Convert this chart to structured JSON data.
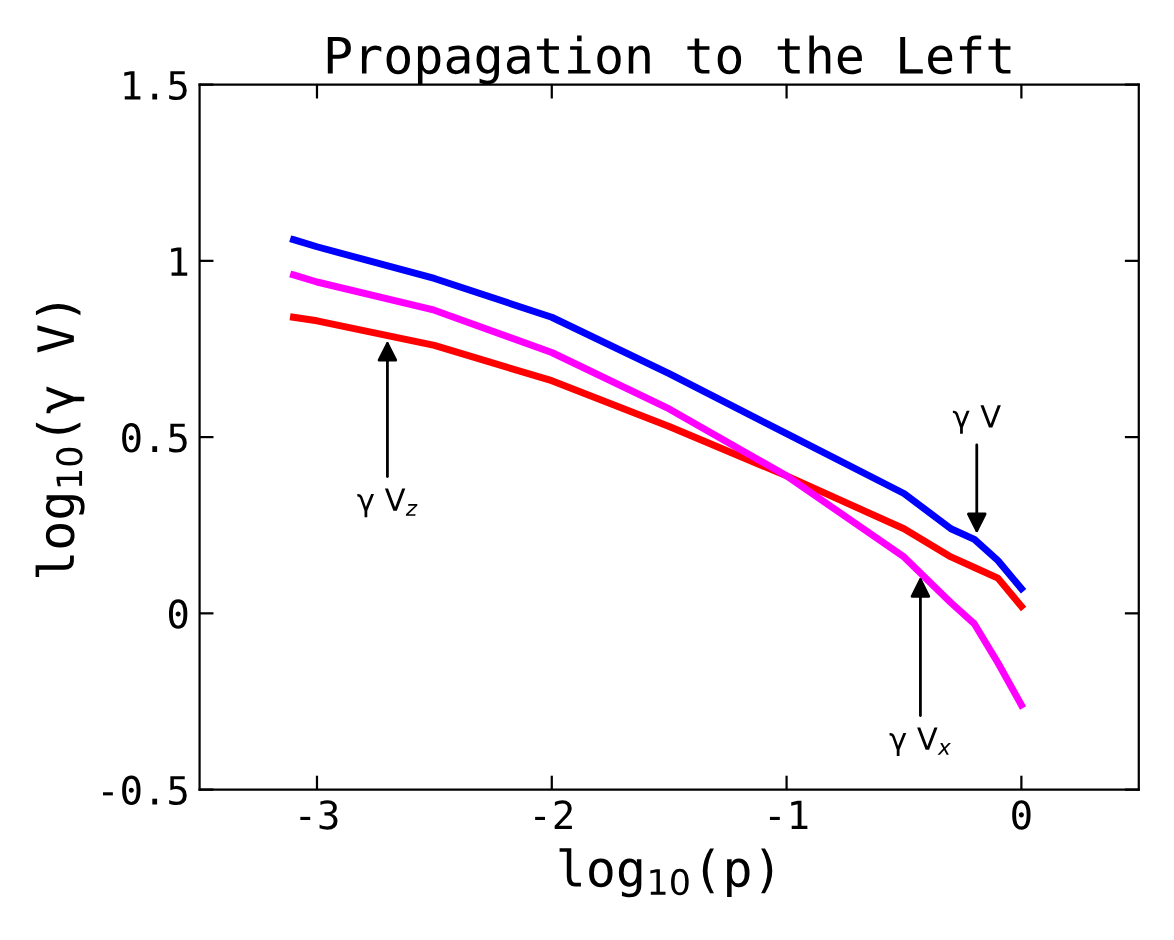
{
  "chart_data": {
    "type": "line",
    "title": "Propagation to the Left",
    "xlabel": "log$_{10}$(p)",
    "ylabel": "log$_{10}$(γ V)",
    "x": [
      -3.1,
      -3,
      -2.5,
      -2,
      -1.5,
      -1,
      -0.5,
      -0.3,
      -0.2,
      -0.1,
      0
    ],
    "series": [
      {
        "color": "#0000ff",
        "values": [
          1.06,
          1.04,
          0.95,
          0.84,
          0.68,
          0.51,
          0.34,
          0.24,
          0.21,
          0.15,
          0.07
        ]
      },
      {
        "color": "#ff0000",
        "values": [
          0.84,
          0.83,
          0.76,
          0.66,
          0.53,
          0.39,
          0.24,
          0.16,
          0.13,
          0.1,
          0.02
        ]
      },
      {
        "color": "#ff00ff",
        "values": [
          0.96,
          0.94,
          0.86,
          0.74,
          0.58,
          0.39,
          0.16,
          0.03,
          -0.03,
          -0.14,
          -0.26
        ]
      }
    ],
    "annotations": [
      {
        "text": "γ V$_{z}$",
        "x": -2.7,
        "y": 0.79
      },
      {
        "text": "γ V",
        "x": -0.19,
        "y": 0.21
      },
      {
        "text": "γ V$_{x}$",
        "x": -0.43,
        "y": 0.12
      }
    ],
    "xlim": [
      -3.5,
      0.5
    ],
    "xticks": [
      -3,
      -2,
      -1,
      0
    ],
    "ylim": [
      -0.5,
      1.5
    ],
    "yticks": [
      -0.5,
      0,
      0.5,
      1,
      1.5
    ],
    "grid": false,
    "legend": false,
    "line_style": "solid",
    "marker": "none"
  }
}
